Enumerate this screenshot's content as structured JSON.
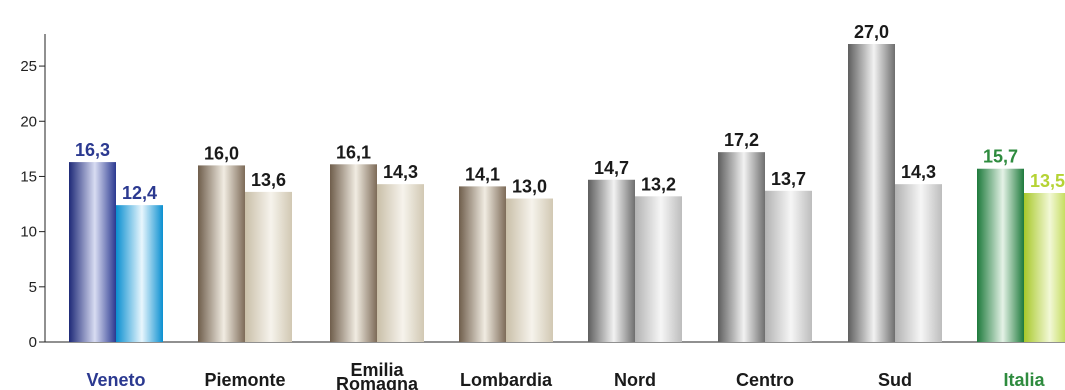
{
  "chart_data": {
    "type": "bar",
    "title": "",
    "xlabel": "",
    "ylabel": "",
    "ylim": [
      0,
      28
    ],
    "yticks": [
      0,
      5,
      10,
      15,
      20,
      25
    ],
    "grid": false,
    "categories": [
      {
        "label": "Veneto",
        "lines": [
          "Veneto"
        ],
        "color": "#2b3990"
      },
      {
        "label": "Piemonte",
        "lines": [
          "Piemonte"
        ],
        "color": "#1a1a1a"
      },
      {
        "label": "Emilia Romagna",
        "lines": [
          "Emilia",
          "Romagna"
        ],
        "color": "#1a1a1a"
      },
      {
        "label": "Lombardia",
        "lines": [
          "Lombardia"
        ],
        "color": "#1a1a1a"
      },
      {
        "label": "Nord",
        "lines": [
          "Nord"
        ],
        "color": "#1a1a1a"
      },
      {
        "label": "Centro",
        "lines": [
          "Centro"
        ],
        "color": "#1a1a1a"
      },
      {
        "label": "Sud",
        "lines": [
          "Sud"
        ],
        "color": "#1a1a1a"
      },
      {
        "label": "Italia",
        "lines": [
          "Italia"
        ],
        "color": "#2e8b3e"
      }
    ],
    "series": [
      {
        "values": [
          16.3,
          16.0,
          16.1,
          14.1,
          14.7,
          17.2,
          27.0,
          15.7
        ],
        "labels": [
          "16,3",
          "16,0",
          "16,1",
          "14,1",
          "14,7",
          "17,2",
          "27,0",
          "15,7"
        ]
      },
      {
        "values": [
          12.4,
          13.6,
          14.3,
          13.0,
          13.2,
          13.7,
          14.3,
          13.5
        ],
        "labels": [
          "12,4",
          "13,6",
          "14,3",
          "13,0",
          "13,2",
          "13,7",
          "14,3",
          "13,5"
        ]
      }
    ],
    "colors": {
      "veneto_dark": "#2b3990",
      "veneto_light": "#0a8fd0",
      "beige_dark": "#7d6b58",
      "beige_light": "#d8d0bd",
      "gray_dark": "#6e6e6e",
      "gray_light": "#bdbdbd",
      "italia_dark": "#1e7a3c",
      "italia_light": "#b5d334",
      "label_default": "#1a1a1a",
      "label_veneto": "#2b3990",
      "label_italia_1": "#2e8b3e",
      "label_italia_2": "#b5d334"
    }
  }
}
